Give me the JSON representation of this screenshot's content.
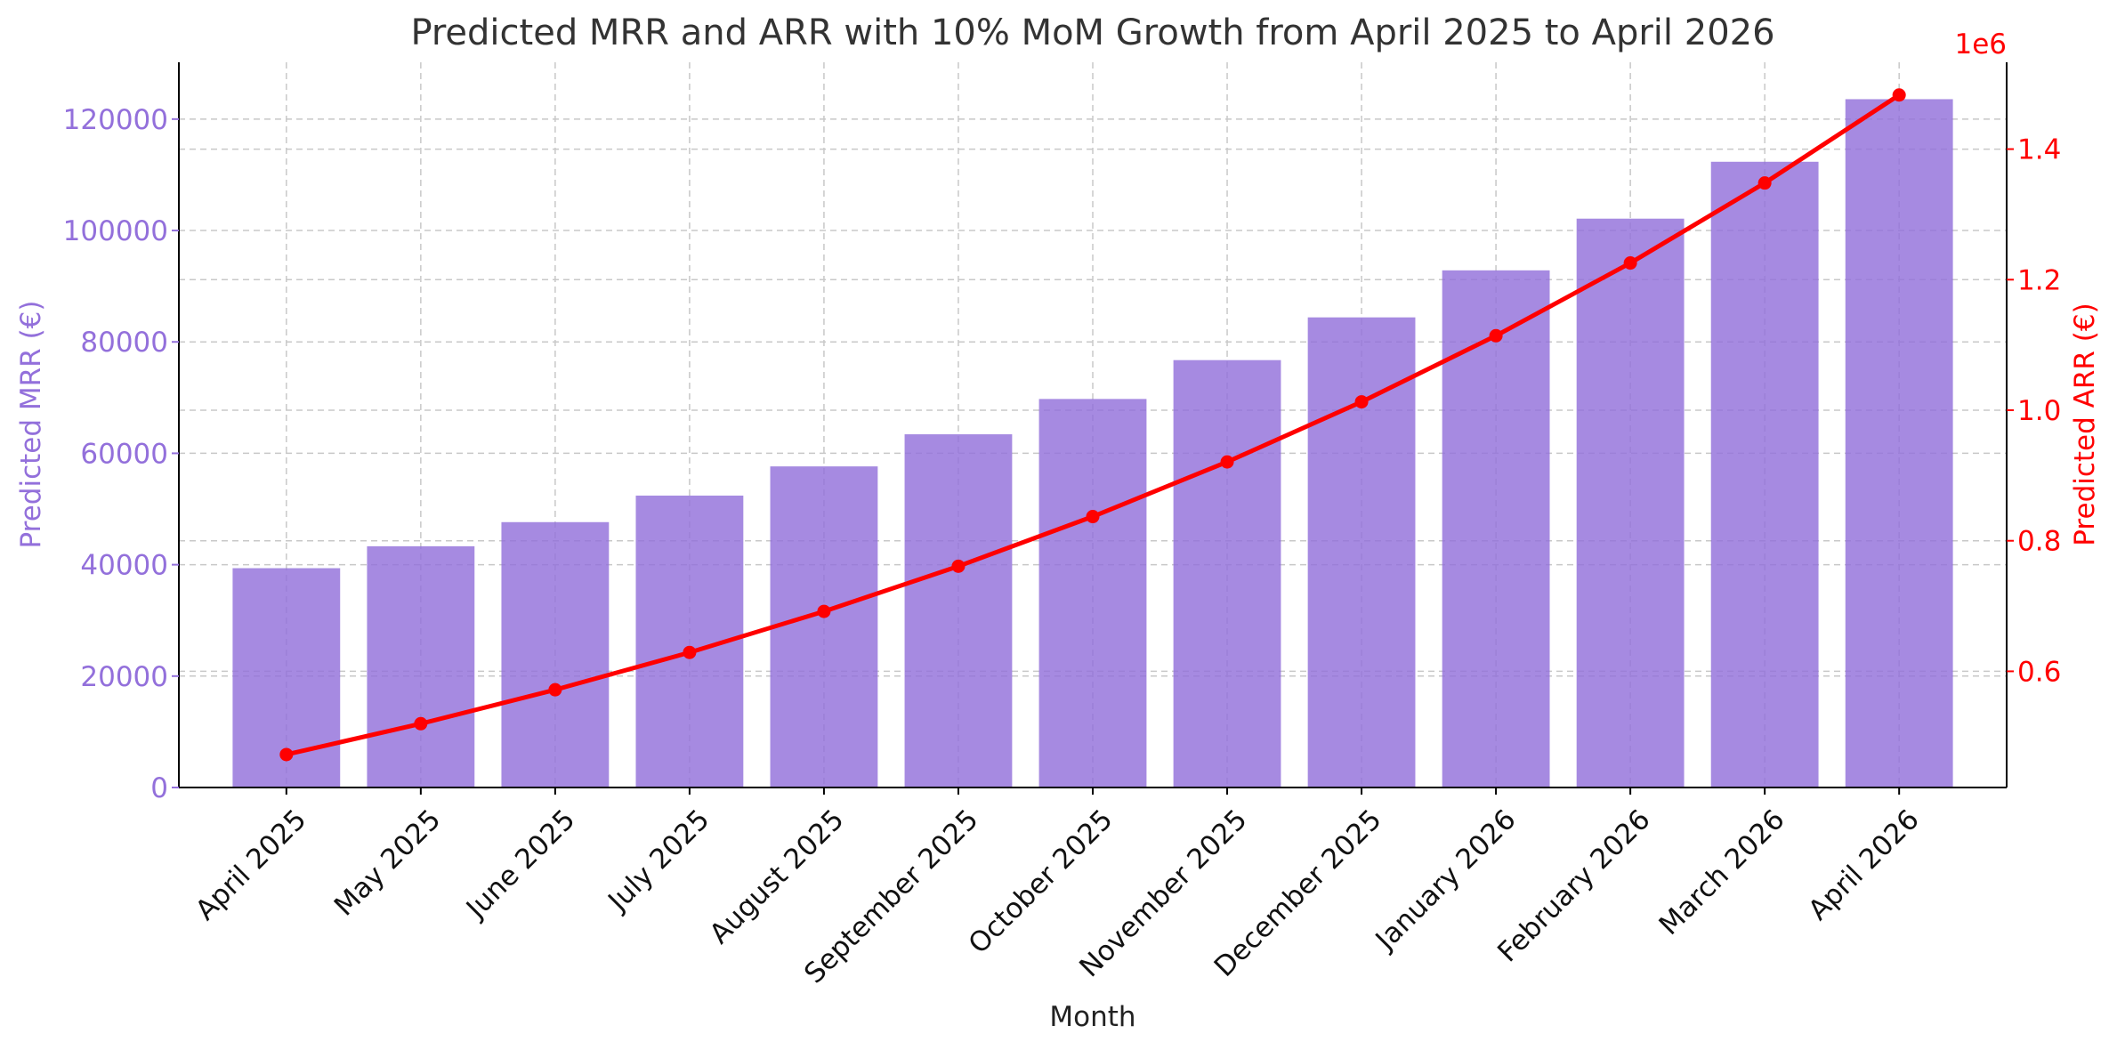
{
  "chart_data": {
    "type": "bar",
    "title": "Predicted MRR and ARR with 10% MoM Growth from April 2025 to April 2026",
    "xlabel": "Month",
    "categories": [
      "April 2025",
      "May 2025",
      "June 2025",
      "July 2025",
      "August 2025",
      "September 2025",
      "October 2025",
      "November 2025",
      "December 2025",
      "January 2026",
      "February 2026",
      "March 2026",
      "April 2026"
    ],
    "series": [
      {
        "type": "bar",
        "axis": "left",
        "color": "#9370DB",
        "values": [
          39375,
          43313,
          47644,
          52408,
          57649,
          63414,
          69755,
          76731,
          84404,
          92844,
          102129,
          112342,
          123576
        ]
      },
      {
        "type": "line",
        "axis": "right",
        "color": "#FF0000",
        "marker": "circle",
        "values": [
          472500,
          519750,
          571725,
          628898,
          691787,
          760966,
          837063,
          920769,
          1012846,
          1114130,
          1225543,
          1348098,
          1482907
        ]
      }
    ],
    "left_axis": {
      "label": "Predicted MRR (€)",
      "color": "#9370DB",
      "ylim": [
        0,
        130200
      ],
      "ticks": [
        0,
        20000,
        40000,
        60000,
        80000,
        100000,
        120000
      ],
      "tick_labels": [
        "0",
        "20000",
        "40000",
        "60000",
        "80000",
        "100000",
        "120000"
      ]
    },
    "right_axis": {
      "label": "Predicted ARR (€)",
      "color": "#FF0000",
      "offset_text": "1e6",
      "ylim": [
        422000,
        1533000
      ],
      "ticks": [
        600000,
        800000,
        1000000,
        1200000,
        1400000
      ],
      "tick_labels": [
        "0.6",
        "0.8",
        "1.0",
        "1.2",
        "1.4"
      ]
    },
    "grid": true
  }
}
